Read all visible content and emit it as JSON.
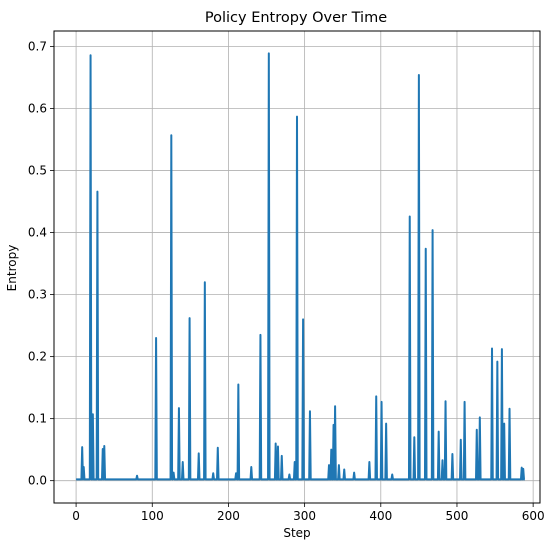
{
  "chart_data": {
    "type": "line",
    "title": "Policy Entropy Over Time",
    "xlabel": "Step",
    "ylabel": "Entropy",
    "xlim": [
      -29,
      609
    ],
    "ylim": [
      -0.036,
      0.725
    ],
    "xticks": [
      0,
      100,
      200,
      300,
      400,
      500,
      600
    ],
    "yticks": [
      0.0,
      0.1,
      0.2,
      0.3,
      0.4,
      0.5,
      0.6,
      0.7
    ],
    "xtick_labels": [
      "0",
      "100",
      "200",
      "300",
      "400",
      "500",
      "600"
    ],
    "ytick_labels": [
      "0.0",
      "0.1",
      "0.2",
      "0.3",
      "0.4",
      "0.5",
      "0.6",
      "0.7"
    ],
    "grid": true,
    "legend": "none",
    "line_color": "#1f77b4",
    "series": [
      {
        "x_start": 0,
        "x_end": 589,
        "baseline": 0.002,
        "spikes": [
          [
            8,
            0.054
          ],
          [
            10,
            0.022
          ],
          [
            19,
            0.686
          ],
          [
            22,
            0.107
          ],
          [
            28,
            0.466
          ],
          [
            35,
            0.051
          ],
          [
            37,
            0.056
          ],
          [
            80,
            0.008
          ],
          [
            105,
            0.23
          ],
          [
            125,
            0.557
          ],
          [
            128,
            0.013
          ],
          [
            135,
            0.117
          ],
          [
            140,
            0.03
          ],
          [
            149,
            0.262
          ],
          [
            161,
            0.044
          ],
          [
            169,
            0.32
          ],
          [
            180,
            0.012
          ],
          [
            186,
            0.053
          ],
          [
            213,
            0.155
          ],
          [
            210,
            0.012
          ],
          [
            230,
            0.022
          ],
          [
            242,
            0.235
          ],
          [
            253,
            0.689
          ],
          [
            262,
            0.06
          ],
          [
            265,
            0.055
          ],
          [
            270,
            0.04
          ],
          [
            280,
            0.01
          ],
          [
            287,
            0.03
          ],
          [
            290,
            0.587
          ],
          [
            298,
            0.26
          ],
          [
            307,
            0.112
          ],
          [
            332,
            0.025
          ],
          [
            335,
            0.05
          ],
          [
            338,
            0.09
          ],
          [
            340,
            0.12
          ],
          [
            345,
            0.025
          ],
          [
            352,
            0.018
          ],
          [
            365,
            0.013
          ],
          [
            385,
            0.03
          ],
          [
            394,
            0.136
          ],
          [
            401,
            0.127
          ],
          [
            407,
            0.092
          ],
          [
            415,
            0.01
          ],
          [
            438,
            0.426
          ],
          [
            444,
            0.07
          ],
          [
            450,
            0.654
          ],
          [
            459,
            0.374
          ],
          [
            468,
            0.404
          ],
          [
            476,
            0.079
          ],
          [
            481,
            0.033
          ],
          [
            485,
            0.128
          ],
          [
            494,
            0.043
          ],
          [
            505,
            0.066
          ],
          [
            510,
            0.127
          ],
          [
            526,
            0.082
          ],
          [
            530,
            0.102
          ],
          [
            546,
            0.213
          ],
          [
            553,
            0.192
          ],
          [
            559,
            0.212
          ],
          [
            562,
            0.092
          ],
          [
            569,
            0.116
          ],
          [
            585,
            0.021
          ],
          [
            587,
            0.019
          ]
        ]
      }
    ]
  }
}
